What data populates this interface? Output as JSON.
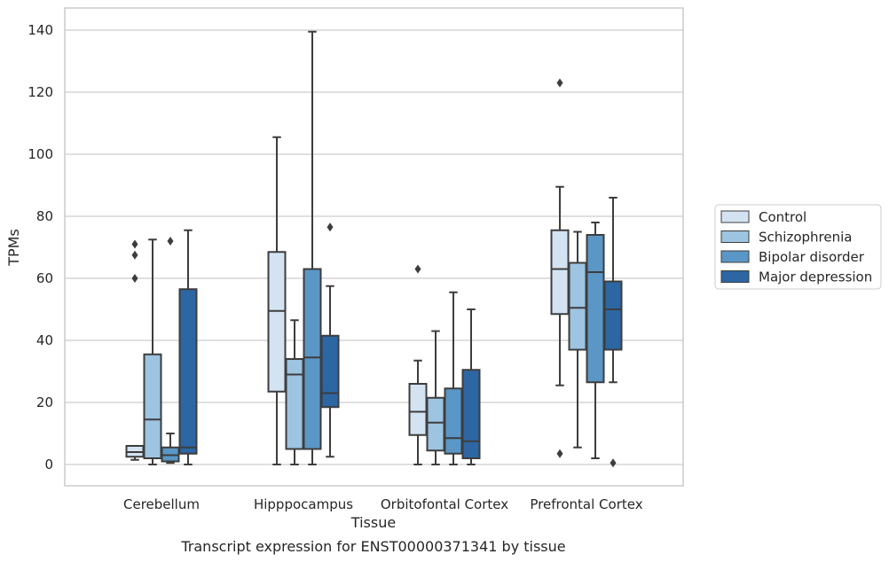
{
  "chart_data": {
    "type": "box",
    "title": "",
    "caption": "Transcript expression for ENST00000371341 by tissue",
    "xlabel": "Tissue",
    "ylabel": "TPMs",
    "ylim": [
      -7,
      147
    ],
    "yticks": [
      0,
      20,
      40,
      60,
      80,
      100,
      120,
      140
    ],
    "grid": "horizontal",
    "legend_position": "right",
    "categories": [
      "Cerebellum",
      "Hipppocampus",
      "Orbitofontal Cortex",
      "Prefrontal Cortex"
    ],
    "series": [
      {
        "name": "Control",
        "color": "#d4e3f2",
        "boxes": [
          {
            "whisker_low": 1.5,
            "q1": 2.5,
            "median": 4,
            "q3": 6,
            "whisker_high": 6,
            "outliers": [
              60,
              67.5,
              71
            ]
          },
          {
            "whisker_low": 0,
            "q1": 23.5,
            "median": 49.5,
            "q3": 68.5,
            "whisker_high": 105.5,
            "outliers": []
          },
          {
            "whisker_low": 0,
            "q1": 9.5,
            "median": 17,
            "q3": 26,
            "whisker_high": 33.5,
            "outliers": [
              63
            ]
          },
          {
            "whisker_low": 25.5,
            "q1": 48.5,
            "median": 63,
            "q3": 75.5,
            "whisker_high": 89.5,
            "outliers": [
              3.5,
              123
            ]
          }
        ]
      },
      {
        "name": "Schizophrenia",
        "color": "#9dc4e0",
        "boxes": [
          {
            "whisker_low": 0,
            "q1": 2,
            "median": 14.5,
            "q3": 35.5,
            "whisker_high": 72.5,
            "outliers": []
          },
          {
            "whisker_low": 0,
            "q1": 5,
            "median": 29,
            "q3": 34,
            "whisker_high": 46.5,
            "outliers": []
          },
          {
            "whisker_low": 0,
            "q1": 4.5,
            "median": 13.5,
            "q3": 21.5,
            "whisker_high": 43,
            "outliers": []
          },
          {
            "whisker_low": 5.5,
            "q1": 37,
            "median": 50.5,
            "q3": 65,
            "whisker_high": 75,
            "outliers": []
          }
        ]
      },
      {
        "name": "Bipolar disorder",
        "color": "#5a97c6",
        "boxes": [
          {
            "whisker_low": 0.5,
            "q1": 1,
            "median": 3,
            "q3": 5.5,
            "whisker_high": 10,
            "outliers": [
              72
            ]
          },
          {
            "whisker_low": 0,
            "q1": 5,
            "median": 34.5,
            "q3": 63,
            "whisker_high": 139.5,
            "outliers": []
          },
          {
            "whisker_low": 0,
            "q1": 3.5,
            "median": 8.5,
            "q3": 24.5,
            "whisker_high": 55.5,
            "outliers": []
          },
          {
            "whisker_low": 2,
            "q1": 26.5,
            "median": 62,
            "q3": 74,
            "whisker_high": 78,
            "outliers": []
          }
        ]
      },
      {
        "name": "Major depression",
        "color": "#2c67a4",
        "boxes": [
          {
            "whisker_low": 0,
            "q1": 3.5,
            "median": 5.5,
            "q3": 56.5,
            "whisker_high": 75.5,
            "outliers": []
          },
          {
            "whisker_low": 2.5,
            "q1": 18.5,
            "median": 23,
            "q3": 41.5,
            "whisker_high": 57.5,
            "outliers": [
              76.5
            ]
          },
          {
            "whisker_low": 0,
            "q1": 2,
            "median": 7.5,
            "q3": 30.5,
            "whisker_high": 50,
            "outliers": []
          },
          {
            "whisker_low": 26.5,
            "q1": 37,
            "median": 50,
            "q3": 59,
            "whisker_high": 86,
            "outliers": [
              0.5
            ]
          }
        ]
      }
    ]
  }
}
